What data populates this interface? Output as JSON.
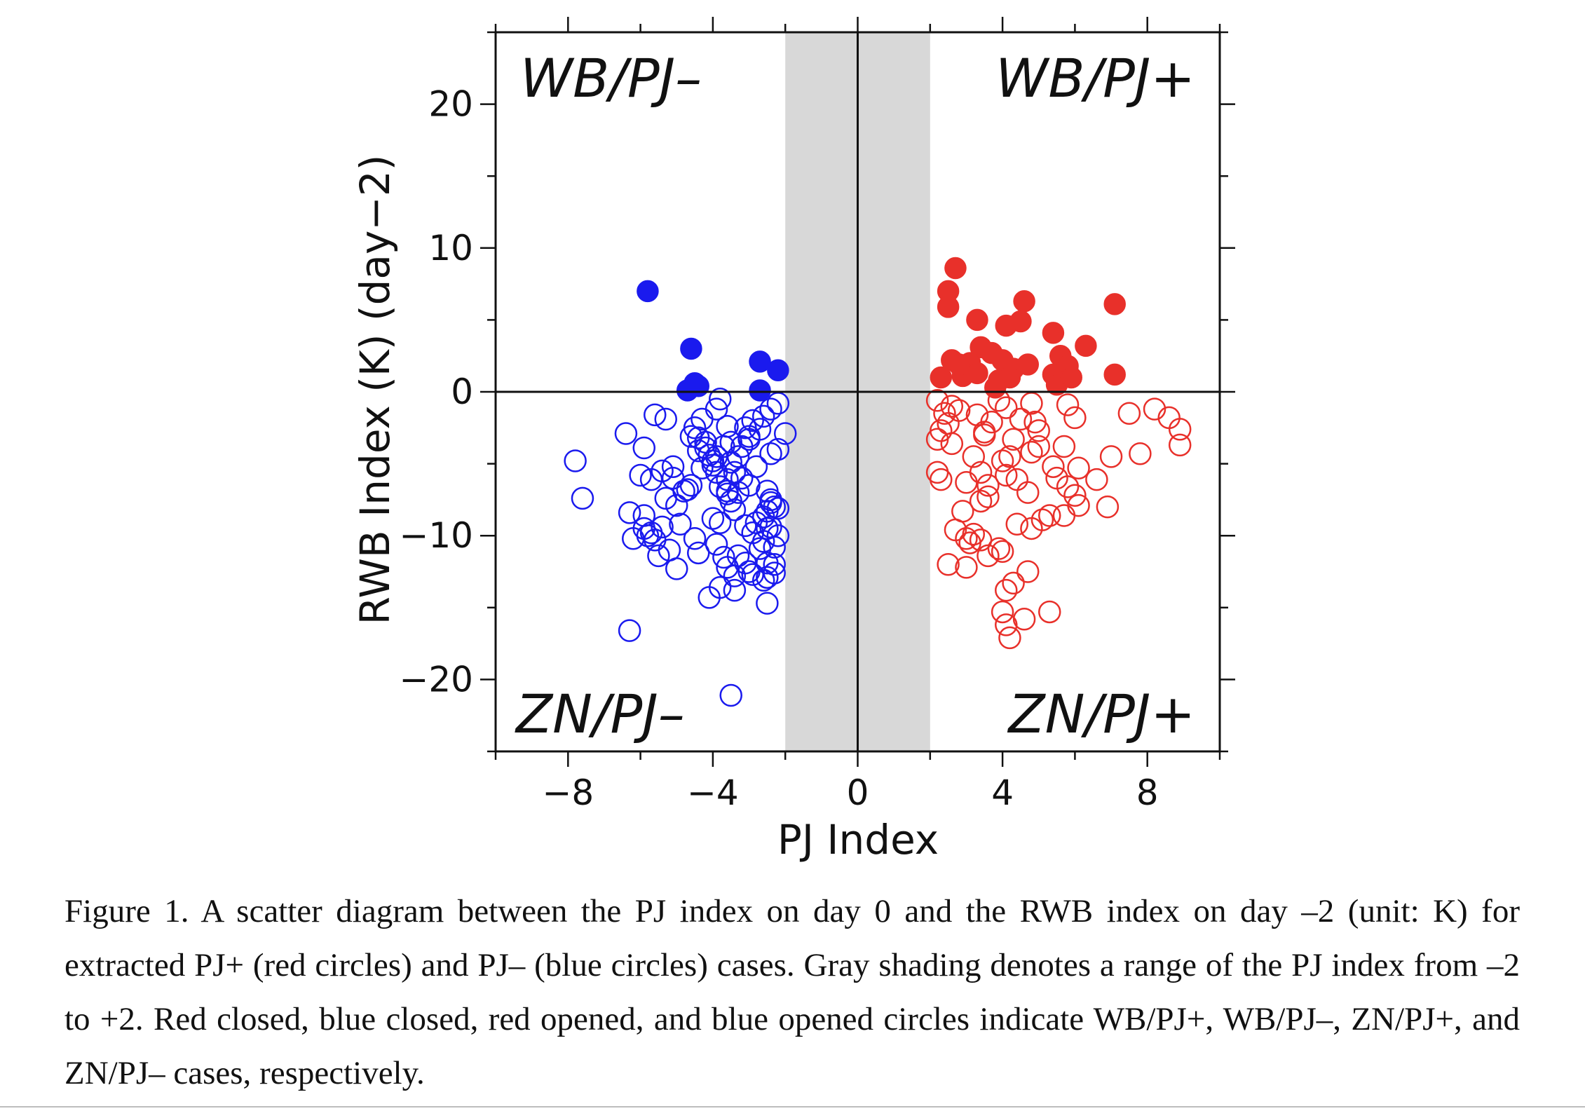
{
  "caption": "Figure 1. A scatter diagram between the PJ index on day 0 and the RWB index on day –2 (unit: K) for extracted PJ+ (red circles) and PJ– (blue circles) cases. Gray shading denotes a range of the PJ index from –2 to +2. Red closed, blue closed, red opened, and blue opened circles indicate WB/PJ+, WB/PJ–, ZN/PJ+, and ZN/PJ– cases, respectively.",
  "colors": {
    "red": "#e8302a",
    "blue": "#1a1aee",
    "shade": "#d8d8d8",
    "axis": "#111111"
  },
  "chart_data": {
    "type": "scatter",
    "xlabel": "PJ Index",
    "ylabel": "RWB Index (K) (day−2)",
    "xlim": [
      -10,
      10
    ],
    "ylim": [
      -25,
      25
    ],
    "x_ticks": [
      -8,
      -4,
      0,
      4,
      8
    ],
    "x_tick_labels": [
      "−8",
      "−4",
      "0",
      "4",
      "8"
    ],
    "y_ticks": [
      -20,
      -10,
      0,
      10,
      20
    ],
    "y_tick_labels": [
      "−20",
      "−10",
      "0",
      "10",
      "20"
    ],
    "shaded_x_range": [
      -2,
      2
    ],
    "reference_lines": {
      "x": 0,
      "y": 0
    },
    "quadrant_labels": {
      "top_left": "WB/PJ–",
      "top_right": "WB/PJ+",
      "bottom_left": "ZN/PJ–",
      "bottom_right": "ZN/PJ+"
    },
    "series": [
      {
        "key": "wb_pj_plus",
        "color": "red",
        "filled": true,
        "points": [
          [
            2.7,
            8.6
          ],
          [
            2.5,
            7
          ],
          [
            2.5,
            5.9
          ],
          [
            3.3,
            5
          ],
          [
            4.6,
            6.3
          ],
          [
            7.1,
            6.1
          ],
          [
            4.1,
            4.6
          ],
          [
            4.5,
            4.9
          ],
          [
            5.4,
            4.1
          ],
          [
            6.3,
            3.2
          ],
          [
            3.4,
            3.1
          ],
          [
            3.7,
            2.7
          ],
          [
            4.0,
            2.2
          ],
          [
            2.6,
            2.2
          ],
          [
            3.1,
            2.0
          ],
          [
            5.6,
            2.5
          ],
          [
            5.8,
            1.8
          ],
          [
            4.7,
            1.9
          ],
          [
            4.3,
            1.6
          ],
          [
            5.4,
            1.2
          ],
          [
            3.3,
            1.3
          ],
          [
            2.9,
            1.1
          ],
          [
            2.3,
            1.0
          ],
          [
            3.9,
            0.8
          ],
          [
            5.5,
            0.5
          ],
          [
            5.9,
            1.0
          ],
          [
            7.1,
            1.2
          ],
          [
            4.2,
            1.0
          ],
          [
            3.8,
            0.3
          ],
          [
            2.8,
            1.9
          ]
        ]
      },
      {
        "key": "wb_pj_minus",
        "color": "blue",
        "filled": true,
        "points": [
          [
            -5.8,
            7.0
          ],
          [
            -4.6,
            3.0
          ],
          [
            -2.7,
            2.1
          ],
          [
            -2.2,
            1.5
          ],
          [
            -4.5,
            0.6
          ],
          [
            -4.7,
            0.1
          ],
          [
            -2.7,
            0.1
          ],
          [
            -4.4,
            0.4
          ]
        ]
      },
      {
        "key": "zn_pj_plus",
        "color": "red",
        "filled": false,
        "points": [
          [
            2.2,
            -0.6
          ],
          [
            2.6,
            -1.0
          ],
          [
            2.4,
            -1.5
          ],
          [
            2.5,
            -2.2
          ],
          [
            2.3,
            -2.7
          ],
          [
            2.2,
            -3.3
          ],
          [
            2.8,
            -1.3
          ],
          [
            3.3,
            -1.6
          ],
          [
            3.7,
            -2.1
          ],
          [
            3.5,
            -2.8
          ],
          [
            4.1,
            -1.1
          ],
          [
            3.9,
            -0.6
          ],
          [
            4.8,
            -0.8
          ],
          [
            4.5,
            -1.9
          ],
          [
            5.0,
            -2.7
          ],
          [
            5.7,
            -3.8
          ],
          [
            4.3,
            -3.3
          ],
          [
            4.8,
            -4.2
          ],
          [
            4.2,
            -4.5
          ],
          [
            4.0,
            -4.8
          ],
          [
            3.2,
            -4.5
          ],
          [
            3.4,
            -5.6
          ],
          [
            3.0,
            -6.3
          ],
          [
            2.2,
            -5.6
          ],
          [
            2.3,
            -6.1
          ],
          [
            3.6,
            -6.5
          ],
          [
            4.1,
            -5.8
          ],
          [
            4.4,
            -6.1
          ],
          [
            5.4,
            -5.2
          ],
          [
            5.5,
            -6.0
          ],
          [
            6.1,
            -5.3
          ],
          [
            6.6,
            -6.1
          ],
          [
            6.0,
            -7.2
          ],
          [
            5.8,
            -6.6
          ],
          [
            4.7,
            -7.0
          ],
          [
            3.6,
            -7.3
          ],
          [
            3.4,
            -7.6
          ],
          [
            2.9,
            -8.3
          ],
          [
            2.7,
            -9.6
          ],
          [
            3.2,
            -9.9
          ],
          [
            3.1,
            -10.5
          ],
          [
            3.4,
            -10.3
          ],
          [
            3.0,
            -10.2
          ],
          [
            3.9,
            -10.9
          ],
          [
            4.0,
            -11.1
          ],
          [
            3.6,
            -11.4
          ],
          [
            2.5,
            -12.0
          ],
          [
            3.0,
            -12.2
          ],
          [
            4.7,
            -12.5
          ],
          [
            4.3,
            -13.3
          ],
          [
            4.1,
            -13.8
          ],
          [
            4.0,
            -15.3
          ],
          [
            4.6,
            -15.8
          ],
          [
            5.3,
            -15.3
          ],
          [
            4.1,
            -16.2
          ],
          [
            4.2,
            -17.1
          ],
          [
            5.8,
            -0.9
          ],
          [
            6.0,
            -1.8
          ],
          [
            7.5,
            -1.5
          ],
          [
            7.0,
            -4.5
          ],
          [
            7.8,
            -4.3
          ],
          [
            8.2,
            -1.2
          ],
          [
            8.6,
            -1.8
          ],
          [
            8.9,
            -2.6
          ],
          [
            8.9,
            -3.7
          ],
          [
            6.9,
            -8.0
          ],
          [
            5.7,
            -8.6
          ],
          [
            5.1,
            -8.9
          ],
          [
            5.3,
            -8.6
          ],
          [
            4.8,
            -9.5
          ],
          [
            4.4,
            -9.2
          ],
          [
            6.1,
            -7.9
          ],
          [
            4.9,
            -2.1
          ],
          [
            5.0,
            -3.8
          ],
          [
            3.5,
            -3.0
          ],
          [
            2.6,
            -3.6
          ]
        ]
      },
      {
        "key": "zn_pj_minus",
        "color": "blue",
        "filled": false,
        "points": [
          [
            -7.8,
            -4.8
          ],
          [
            -7.6,
            -7.4
          ],
          [
            -6.4,
            -2.9
          ],
          [
            -5.9,
            -3.9
          ],
          [
            -6.0,
            -5.8
          ],
          [
            -5.7,
            -6.1
          ],
          [
            -6.3,
            -8.4
          ],
          [
            -5.9,
            -8.6
          ],
          [
            -5.9,
            -9.5
          ],
          [
            -5.7,
            -9.8
          ],
          [
            -6.2,
            -10.2
          ],
          [
            -5.6,
            -10.3
          ],
          [
            -5.5,
            -11.4
          ],
          [
            -5.2,
            -11.0
          ],
          [
            -5.0,
            -12.3
          ],
          [
            -5.1,
            -5.2
          ],
          [
            -5.4,
            -5.5
          ],
          [
            -5.6,
            -1.6
          ],
          [
            -5.3,
            -1.9
          ],
          [
            -4.8,
            -6.9
          ],
          [
            -4.5,
            -10.2
          ],
          [
            -4.4,
            -11.2
          ],
          [
            -4.4,
            -4.1
          ],
          [
            -4.2,
            -3.5
          ],
          [
            -4.0,
            -5.1
          ],
          [
            -3.9,
            -4.5
          ],
          [
            -3.7,
            -3.8
          ],
          [
            -3.5,
            -3.5
          ],
          [
            -3.2,
            -3.8
          ],
          [
            -3.0,
            -3.3
          ],
          [
            -3.3,
            -4.5
          ],
          [
            -3.6,
            -6.1
          ],
          [
            -3.8,
            -6.6
          ],
          [
            -3.6,
            -7.1
          ],
          [
            -3.3,
            -7.0
          ],
          [
            -3.0,
            -6.5
          ],
          [
            -3.4,
            -8.2
          ],
          [
            -3.1,
            -9.3
          ],
          [
            -2.8,
            -9.1
          ],
          [
            -2.5,
            -8.3
          ],
          [
            -2.4,
            -7.7
          ],
          [
            -2.3,
            -8.0
          ],
          [
            -2.4,
            -9.4
          ],
          [
            -2.2,
            -10.0
          ],
          [
            -2.3,
            -10.8
          ],
          [
            -2.7,
            -10.9
          ],
          [
            -3.3,
            -11.4
          ],
          [
            -3.6,
            -12.2
          ],
          [
            -3.4,
            -12.8
          ],
          [
            -3.0,
            -12.5
          ],
          [
            -2.6,
            -13.1
          ],
          [
            -2.3,
            -12.6
          ],
          [
            -2.5,
            -12.9
          ],
          [
            -3.8,
            -13.6
          ],
          [
            -4.1,
            -14.3
          ],
          [
            -3.4,
            -13.8
          ],
          [
            -2.5,
            -14.7
          ],
          [
            -6.3,
            -16.6
          ],
          [
            -3.5,
            -21.1
          ],
          [
            -4.5,
            -2.5
          ],
          [
            -4.3,
            -1.9
          ],
          [
            -3.9,
            -1.2
          ],
          [
            -3.8,
            -0.5
          ],
          [
            -3.6,
            -2.4
          ],
          [
            -3.1,
            -2.5
          ],
          [
            -2.9,
            -2.0
          ],
          [
            -2.6,
            -1.7
          ],
          [
            -2.4,
            -1.2
          ],
          [
            -2.2,
            -0.8
          ],
          [
            -2.0,
            -2.9
          ],
          [
            -2.2,
            -4.0
          ],
          [
            -2.4,
            -4.3
          ],
          [
            -2.7,
            -2.6
          ],
          [
            -3.0,
            -3.1
          ],
          [
            -2.8,
            -5.2
          ],
          [
            -3.2,
            -6.0
          ],
          [
            -3.4,
            -5.6
          ],
          [
            -3.5,
            -4.9
          ],
          [
            -4.1,
            -4.4
          ],
          [
            -4.3,
            -5.3
          ],
          [
            -4.6,
            -6.5
          ],
          [
            -4.7,
            -6.8
          ],
          [
            -5.1,
            -6.0
          ],
          [
            -5.3,
            -7.4
          ],
          [
            -5.0,
            -7.9
          ],
          [
            -4.9,
            -9.2
          ],
          [
            -5.4,
            -9.4
          ],
          [
            -5.8,
            -10.0
          ],
          [
            -4.6,
            -3.1
          ],
          [
            -4.4,
            -3.2
          ],
          [
            -4.2,
            -3.9
          ],
          [
            -4.0,
            -4.8
          ],
          [
            -3.9,
            -5.6
          ],
          [
            -3.6,
            -6.9
          ],
          [
            -3.5,
            -7.6
          ],
          [
            -2.5,
            -6.9
          ],
          [
            -2.4,
            -7.5
          ],
          [
            -2.2,
            -8.1
          ],
          [
            -2.6,
            -8.7
          ],
          [
            -2.5,
            -9.5
          ],
          [
            -2.9,
            -9.8
          ],
          [
            -3.8,
            -9.1
          ],
          [
            -4.0,
            -8.8
          ],
          [
            -3.9,
            -10.6
          ],
          [
            -3.7,
            -11.5
          ],
          [
            -3.1,
            -11.9
          ],
          [
            -2.9,
            -12.7
          ],
          [
            -2.5,
            -11.9
          ],
          [
            -2.3,
            -12.0
          ],
          [
            -2.6,
            -10.4
          ]
        ]
      }
    ]
  }
}
